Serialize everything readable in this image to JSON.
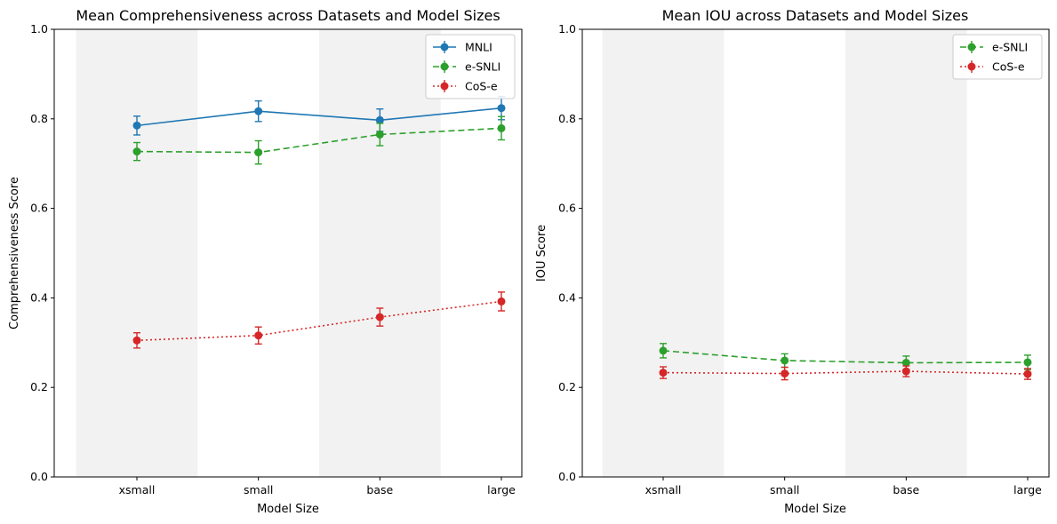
{
  "chart_data": [
    {
      "type": "line",
      "title": "Mean Comprehensiveness across Datasets and Model Sizes",
      "xlabel": "Model Size",
      "ylabel": "Comprehensiveness Score",
      "categories": [
        "xsmall",
        "small",
        "base",
        "large"
      ],
      "ylim": [
        0,
        1
      ],
      "yticks": [
        "0.0",
        "0.2",
        "0.4",
        "0.6",
        "0.8",
        "1.0"
      ],
      "shaded_categories": [
        "xsmall",
        "base"
      ],
      "legend_position": "top-right",
      "series": [
        {
          "name": "MNLI",
          "color": "#1f77b4",
          "dash": "solid",
          "values": [
            0.785,
            0.817,
            0.797,
            0.824
          ],
          "errors": [
            0.021,
            0.023,
            0.025,
            0.026
          ]
        },
        {
          "name": "e-SNLI",
          "color": "#2ca02c",
          "dash": "dashed",
          "values": [
            0.727,
            0.725,
            0.765,
            0.779
          ],
          "errors": [
            0.02,
            0.026,
            0.025,
            0.026
          ]
        },
        {
          "name": "CoS-e",
          "color": "#d62728",
          "dash": "dotted",
          "values": [
            0.305,
            0.316,
            0.357,
            0.392
          ],
          "errors": [
            0.017,
            0.019,
            0.02,
            0.021
          ]
        }
      ]
    },
    {
      "type": "line",
      "title": "Mean IOU across Datasets and Model Sizes",
      "xlabel": "Model Size",
      "ylabel": "IOU Score",
      "categories": [
        "xsmall",
        "small",
        "base",
        "large"
      ],
      "ylim": [
        0,
        1
      ],
      "yticks": [
        "0.0",
        "0.2",
        "0.4",
        "0.6",
        "0.8",
        "1.0"
      ],
      "shaded_categories": [
        "xsmall",
        "base"
      ],
      "legend_position": "top-right",
      "series": [
        {
          "name": "e-SNLI",
          "color": "#2ca02c",
          "dash": "dashed",
          "values": [
            0.282,
            0.26,
            0.255,
            0.256
          ],
          "errors": [
            0.016,
            0.015,
            0.015,
            0.016
          ]
        },
        {
          "name": "CoS-e",
          "color": "#d62728",
          "dash": "dotted",
          "values": [
            0.233,
            0.231,
            0.236,
            0.23
          ],
          "errors": [
            0.013,
            0.014,
            0.012,
            0.012
          ]
        }
      ]
    }
  ]
}
